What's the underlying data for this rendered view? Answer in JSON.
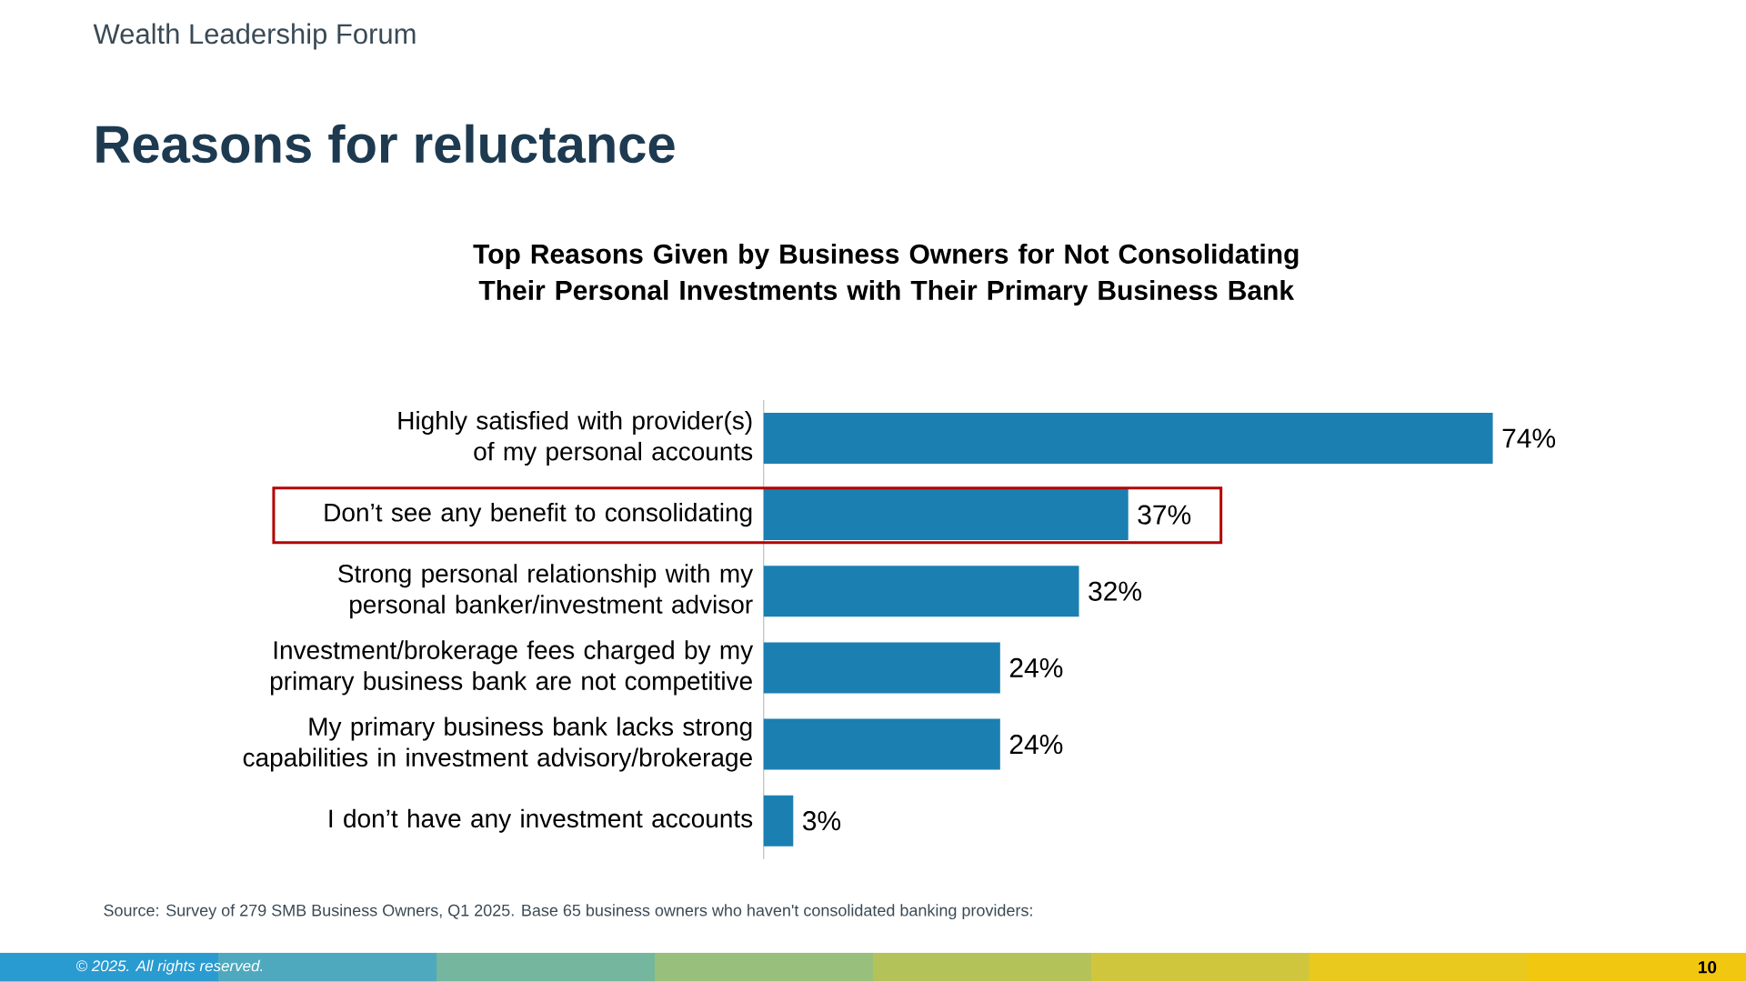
{
  "chart_data": {
    "type": "bar",
    "orientation": "horizontal",
    "title": "Reasons for reluctance",
    "subtitle": "Top Reasons Given by Business Owners for Not Consolidating Their Personal Investments with Their Primary Business Bank",
    "categories": [
      "Highly satisfied with provider(s) of my personal accounts",
      "Don’t see any benefit to consolidating",
      "Strong personal relationship with my personal banker/investment advisor",
      "Investment/brokerage fees charged by my primary business bank are not competitive",
      "My primary business bank lacks strong capabilities in investment advisory/brokerage",
      "I don’t have any investment accounts"
    ],
    "values": [
      74,
      37,
      32,
      24,
      24,
      3
    ],
    "value_labels": [
      "74%",
      "37%",
      "32%",
      "24%",
      "24%",
      "3%"
    ],
    "color": "#1b80b1",
    "tick_labels": "y",
    "annotations": [
      "Wealth Leadership Forum",
      "Source: Survey of 279 SMB Business Owners, Q1 2025. Base 65 business owners who haven't consolidated banking providers:",
      "© 2025. All rights reserved.",
      "10"
    ]
  }
}
